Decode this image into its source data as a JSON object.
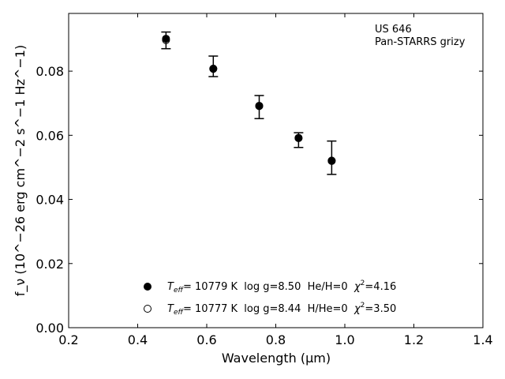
{
  "chart_data": {
    "type": "scatter",
    "title": "",
    "xlabel": "Wavelength (μm)",
    "ylabel": "f_ν (10^−26 erg cm^−2 s^−1 Hz^−1)",
    "xlim": [
      0.2,
      1.4
    ],
    "ylim": [
      0.0,
      0.098
    ],
    "xticks": [
      0.2,
      0.4,
      0.6,
      0.8,
      1.0,
      1.2,
      1.4
    ],
    "xtick_labels": [
      "0.2",
      "0.4",
      "0.6",
      "0.8",
      "1.0",
      "1.2",
      "1.4"
    ],
    "yticks": [
      0.0,
      0.02,
      0.04,
      0.06,
      0.08
    ],
    "ytick_labels": [
      "0.00",
      "0.02",
      "0.04",
      "0.06",
      "0.08"
    ],
    "grid": false,
    "annotation": [
      "US 646",
      "Pan-STARRS grizy"
    ],
    "observed": {
      "x": [
        0.482,
        0.619,
        0.752,
        0.866,
        0.962
      ],
      "y": [
        0.0896,
        0.0815,
        0.0688,
        0.0585,
        0.053
      ],
      "yerr": [
        0.0026,
        0.0032,
        0.0036,
        0.0023,
        0.0052
      ]
    },
    "series": [
      {
        "marker": "filled-circle",
        "x": [
          0.482,
          0.619,
          0.752,
          0.866,
          0.962
        ],
        "y": [
          0.0901,
          0.0808,
          0.0692,
          0.0592,
          0.052
        ]
      },
      {
        "marker": "open-circle",
        "x": [
          0.482,
          0.619,
          0.752,
          0.866,
          0.962
        ],
        "y": [
          0.0897,
          0.0807,
          0.0691,
          0.0591,
          0.0521
        ]
      }
    ],
    "legend": {
      "placement": "lower-center",
      "entries": [
        {
          "marker": "filled-circle",
          "teff_sym": "T",
          "teff_sub": "eff",
          "text": "= 10779 K  log g=8.50  He/H=0  ",
          "chi_sym": "χ",
          "chi_sup": "2",
          "chi_val": "=4.16"
        },
        {
          "marker": "open-circle",
          "teff_sym": "T",
          "teff_sub": "eff",
          "text": "= 10777 K  log g=8.44  H/He=0  ",
          "chi_sym": "χ",
          "chi_sup": "2",
          "chi_val": "=3.50"
        }
      ]
    }
  }
}
